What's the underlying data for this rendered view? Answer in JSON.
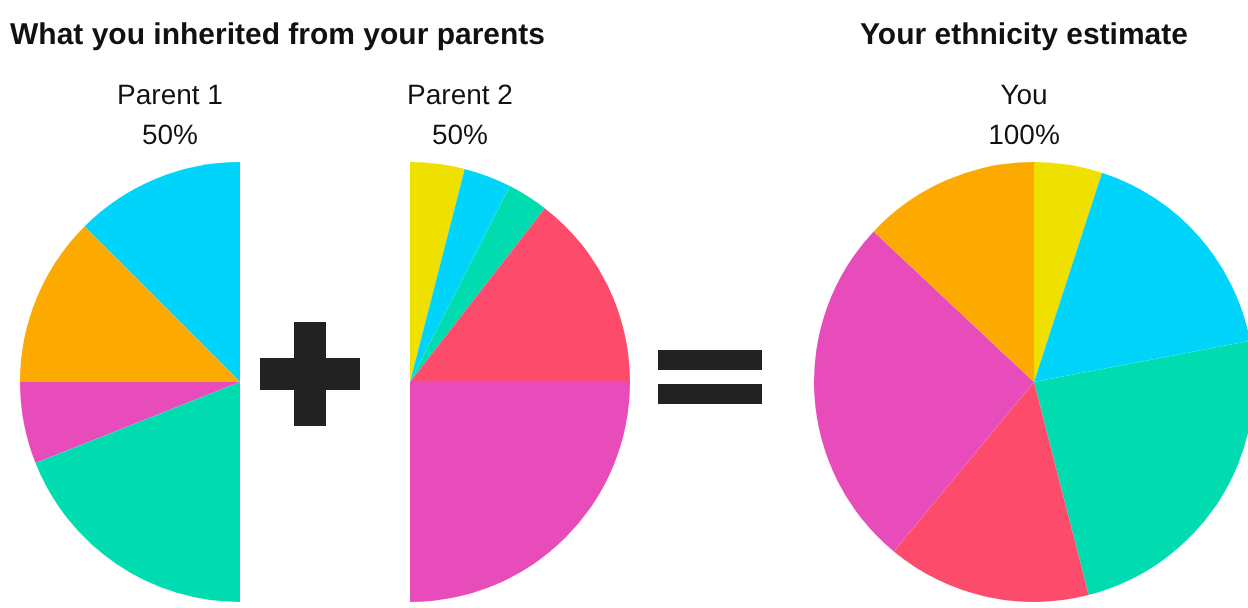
{
  "chart_data": [
    {
      "type": "pie",
      "title": "What you inherited from your parents",
      "subtitle": "Parent 1",
      "annotations": [
        "50%"
      ],
      "categories": [
        null,
        null,
        null,
        null
      ],
      "values": [
        25,
        25,
        12,
        38
      ],
      "colors": [
        "#00d4fb",
        "#fcaa00",
        "#e84cbb",
        "#00dcb0"
      ]
    },
    {
      "type": "pie",
      "subtitle": "Parent 2",
      "annotations": [
        "50%"
      ],
      "categories": [
        null,
        null,
        null,
        null,
        null
      ],
      "values": [
        8,
        7,
        6,
        29,
        50
      ],
      "colors": [
        "#f0e000",
        "#00d4fb",
        "#00dcb0",
        "#fd4b6c",
        "#e84cbb"
      ]
    },
    {
      "type": "pie",
      "title": "Your ethnicity estimate",
      "subtitle": "You",
      "annotations": [
        "100%"
      ],
      "categories": [
        null,
        null,
        null,
        null,
        null,
        null
      ],
      "values": [
        5,
        17,
        24,
        15,
        26,
        13
      ],
      "colors": [
        "#f0e000",
        "#00d4fb",
        "#00dcb0",
        "#fd4b6c",
        "#e84cbb",
        "#fcaa00"
      ]
    }
  ]
}
